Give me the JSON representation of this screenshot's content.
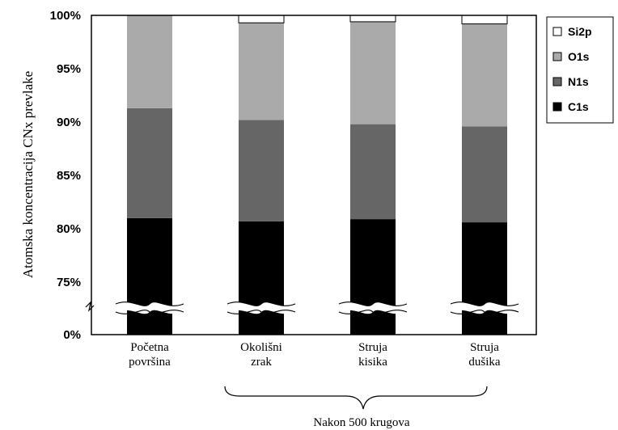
{
  "chart_data": {
    "type": "bar",
    "stacked": true,
    "ylabel": "Atomska koncentracija CNx prevlake",
    "y_ticks": [
      "0%",
      "75%",
      "80%",
      "85%",
      "90%",
      "95%",
      "100%"
    ],
    "axis_break": true,
    "categories": [
      [
        "Početna",
        "površina"
      ],
      [
        "Okolišni",
        "zrak"
      ],
      [
        "Struja",
        "kisika"
      ],
      [
        "Struja",
        "dušika"
      ]
    ],
    "series": [
      {
        "name": "C1s",
        "color": "#000000",
        "values": [
          81.0,
          80.7,
          80.9,
          80.6
        ]
      },
      {
        "name": "N1s",
        "color": "#666666",
        "values": [
          10.3,
          9.5,
          8.9,
          9.0
        ]
      },
      {
        "name": "O1s",
        "color": "#aaaaaa",
        "values": [
          8.7,
          9.1,
          9.6,
          9.6
        ]
      },
      {
        "name": "Si2p",
        "color": "#ffffff",
        "values": [
          0.0,
          0.7,
          0.6,
          0.8
        ]
      }
    ],
    "legend_order": [
      "Si2p",
      "O1s",
      "N1s",
      "C1s"
    ],
    "legend_position": "top-right",
    "brace_label": "Nakon 500 krugova",
    "grid": false
  }
}
